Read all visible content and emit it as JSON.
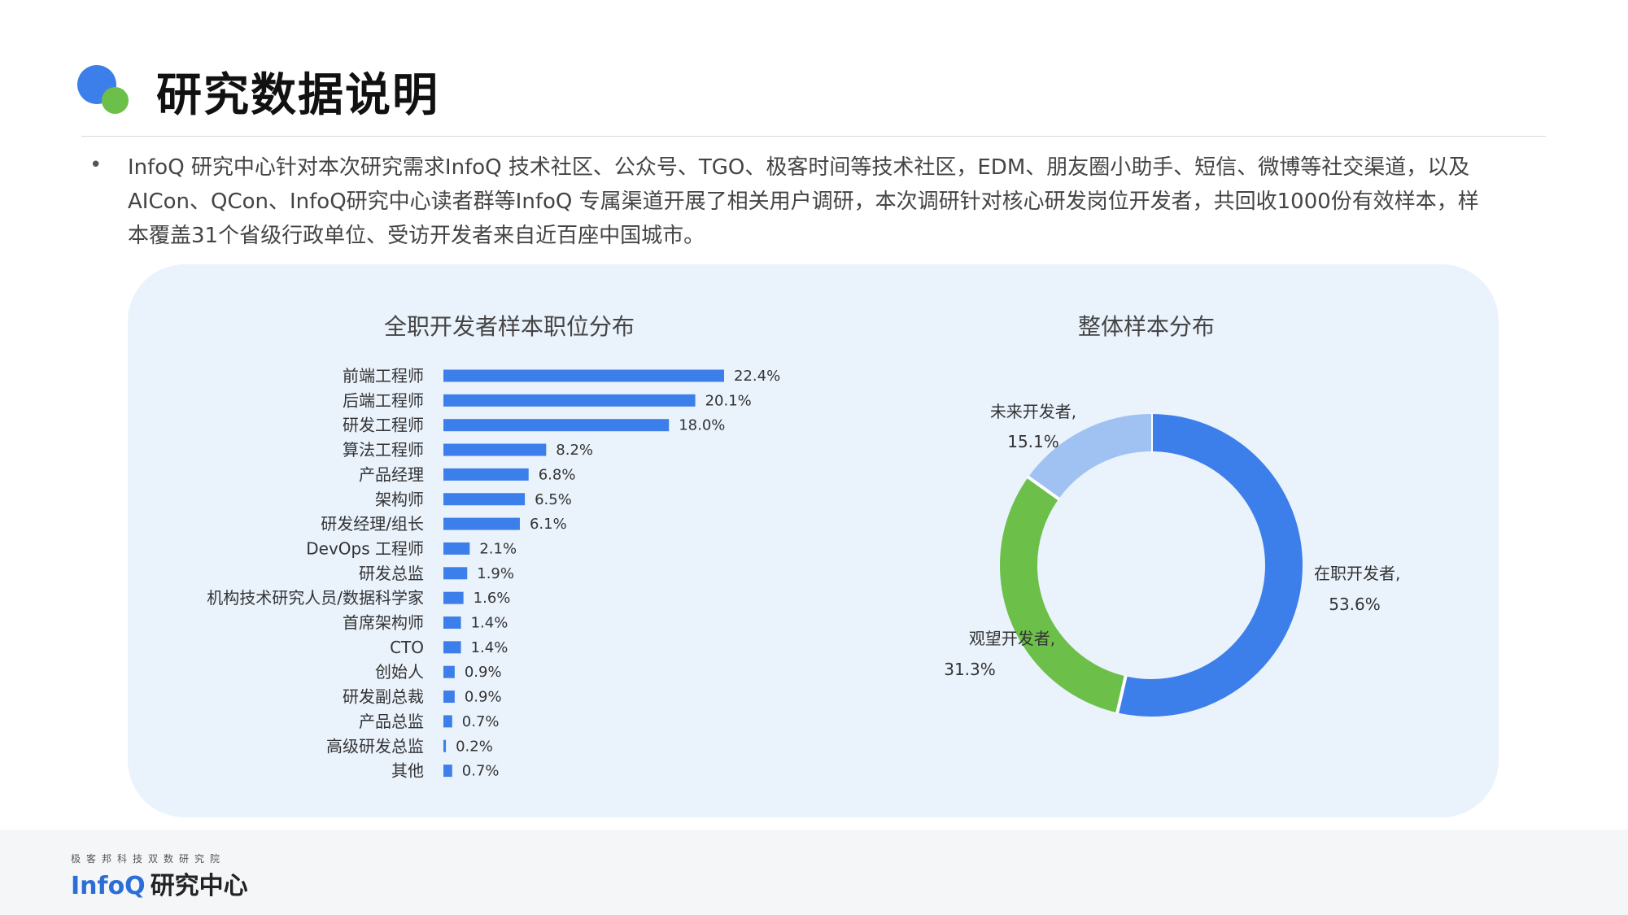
{
  "page": {
    "title": "研究数据说明",
    "intro": "InfoQ 研究中心针对本次研究需求InfoQ 技术社区、公众号、TGO、极客时间等技术社区，EDM、朋友圈小助手、短信、微博等社交渠道，以及AICon、QCon、InfoQ研究中心读者群等InfoQ 专属渠道开展了相关用户调研，本次调研针对核心研发岗位开发者，共回收1000份有效样本，样本覆盖31个省级行政单位、受访开发者来自近百座中国城市。"
  },
  "colors": {
    "bar": "#3D7FEA",
    "donut_employed": "#3D7FEA",
    "donut_watching": "#6CC04A",
    "donut_future": "#9FC2F2",
    "panel_bg": "#EAF2FC"
  },
  "chart_data": [
    {
      "type": "bar",
      "orientation": "horizontal",
      "title": "全职开发者样本职位分布",
      "categories": [
        "前端工程师",
        "后端工程师",
        "研发工程师",
        "算法工程师",
        "产品经理",
        "架构师",
        "研发经理/组长",
        "DevOps 工程师",
        "研发总监",
        "机构技术研究人员/数据科学家",
        "首席架构师",
        "CTO",
        "创始人",
        "研发副总裁",
        "产品总监",
        "高级研发总监",
        "其他"
      ],
      "values": [
        22.4,
        20.1,
        18.0,
        8.2,
        6.8,
        6.5,
        6.1,
        2.1,
        1.9,
        1.6,
        1.4,
        1.4,
        0.9,
        0.9,
        0.7,
        0.2,
        0.7
      ],
      "value_labels": [
        "22.4%",
        "20.1%",
        "18.0%",
        "8.2%",
        "6.8%",
        "6.5%",
        "6.1%",
        "2.1%",
        "1.9%",
        "1.6%",
        "1.4%",
        "1.4%",
        "0.9%",
        "0.9%",
        "0.7%",
        "0.2%",
        "0.7%"
      ],
      "unit": "%",
      "grid": false
    },
    {
      "type": "pie",
      "variant": "donut",
      "title": "整体样本分布",
      "slices": [
        {
          "name": "在职开发者,",
          "value": 53.6,
          "label": "53.6%"
        },
        {
          "name": "观望开发者,",
          "value": 31.3,
          "label": "31.3%"
        },
        {
          "name": "未来开发者,",
          "value": 15.1,
          "label": "15.1%"
        }
      ],
      "unit": "%"
    }
  ],
  "footer": {
    "subtitle": "极客邦科技双数研究院",
    "logo_en": "InfoQ",
    "logo_cn": "研究中心"
  }
}
